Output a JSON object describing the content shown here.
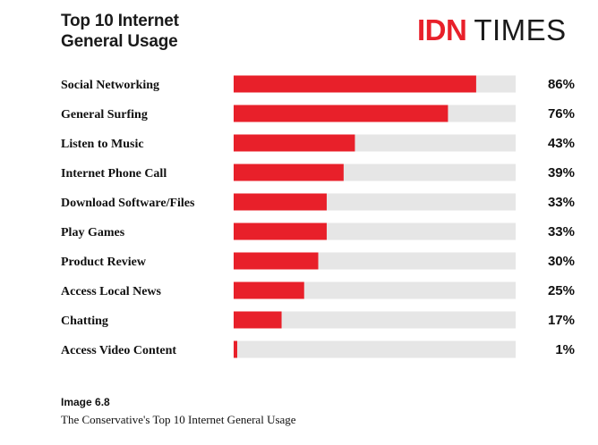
{
  "title_line1": "Top 10 Internet",
  "title_line2": "General Usage",
  "logo": {
    "part1": "IDN",
    "part2": "TIMES"
  },
  "colors": {
    "bar": "#e8202a",
    "track": "#e6e6e6",
    "text": "#111111"
  },
  "chart_data": {
    "type": "bar",
    "orientation": "horizontal",
    "title": "Top 10 Internet General Usage",
    "categories": [
      "Social Networking",
      "General Surfing",
      "Listen to Music",
      "Internet Phone Call",
      "Download Software/Files",
      "Play Games",
      "Product Review",
      "Access Local News",
      "Chatting",
      "Access Video Content"
    ],
    "values": [
      86,
      76,
      43,
      39,
      33,
      33,
      30,
      25,
      17,
      1
    ],
    "value_labels": [
      "86%",
      "76%",
      "43%",
      "39%",
      "33%",
      "33%",
      "30%",
      "25%",
      "17%",
      "1%"
    ],
    "unit": "%",
    "xlim": [
      0,
      100
    ]
  },
  "caption": {
    "id": "Image 6.8",
    "text": "The Conservative's Top 10 Internet General Usage"
  }
}
